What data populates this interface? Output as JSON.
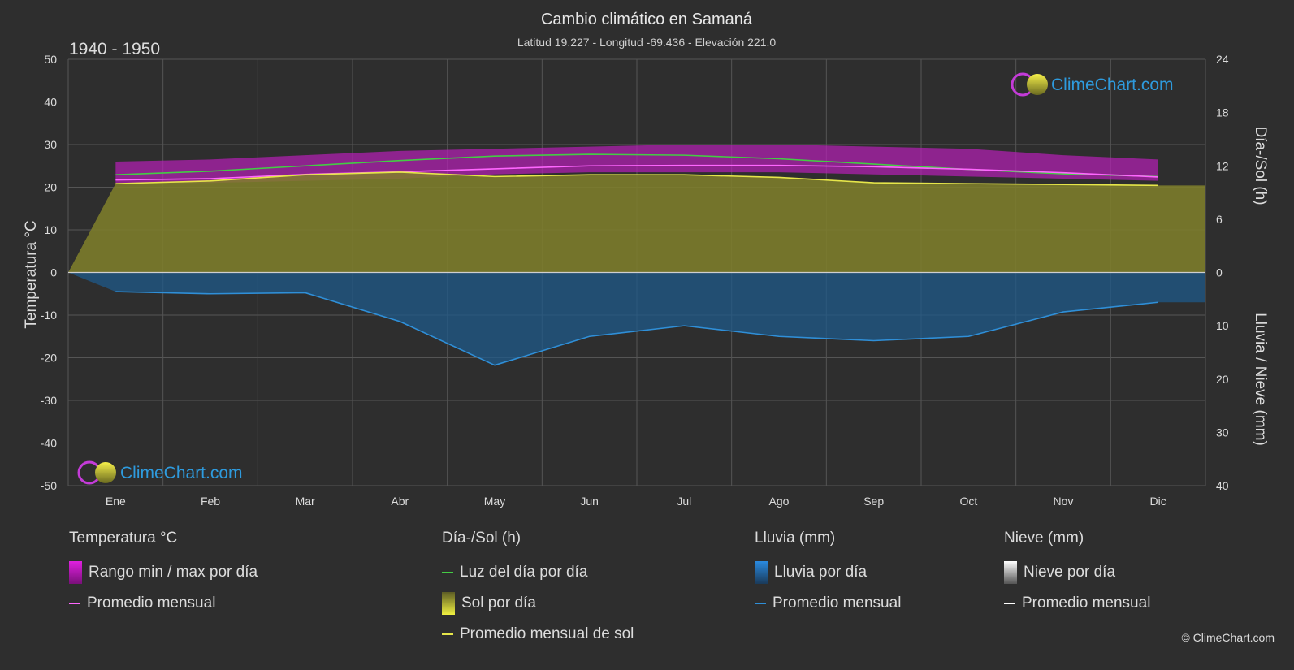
{
  "title": "Cambio climático en Samaná",
  "subtitle": "Latitud 19.227 - Longitud -69.436 - Elevación 221.0",
  "period": "1940 - 1950",
  "brand": "ClimeChart.com",
  "copyright": "© ClimeChart.com",
  "colors": {
    "background": "#2e2e2e",
    "temp_range": "#cc22cc",
    "temp_avg": "#ff66ff",
    "daylight": "#44cc44",
    "sunshine_fill": "#8c8c2a",
    "sunshine_avg": "#e6e64a",
    "rain_fill": "#1f5a8a",
    "rain_avg": "#2f8fd8",
    "snow_avg": "#ffffff",
    "brand_text": "#2e9bde"
  },
  "legend": {
    "temperature": {
      "header": "Temperatura °C",
      "items": [
        {
          "label": "Rango min / max por día",
          "icon": "magenta-gradient-box"
        },
        {
          "label": "Promedio mensual",
          "icon": "magenta-line"
        }
      ]
    },
    "sun": {
      "header": "Día-/Sol (h)",
      "items": [
        {
          "label": "Luz del día por día",
          "icon": "green-line"
        },
        {
          "label": "Sol por día",
          "icon": "yellow-gradient-box"
        },
        {
          "label": "Promedio mensual de sol",
          "icon": "yellow-line"
        }
      ]
    },
    "rain": {
      "header": "Lluvia (mm)",
      "items": [
        {
          "label": "Lluvia por día",
          "icon": "blue-gradient-box"
        },
        {
          "label": "Promedio mensual",
          "icon": "blue-line"
        }
      ]
    },
    "snow": {
      "header": "Nieve (mm)",
      "items": [
        {
          "label": "Nieve por día",
          "icon": "white-gradient-box"
        },
        {
          "label": "Promedio mensual",
          "icon": "white-line"
        }
      ]
    }
  },
  "chart_data": {
    "type": "line",
    "categories": [
      "Ene",
      "Feb",
      "Mar",
      "Abr",
      "May",
      "Jun",
      "Jul",
      "Ago",
      "Sep",
      "Oct",
      "Nov",
      "Dic"
    ],
    "y_left": {
      "label": "Temperatura °C",
      "range": [
        -50,
        50
      ],
      "ticks": [
        50,
        40,
        30,
        20,
        10,
        0,
        -10,
        -20,
        -30,
        -40,
        -50
      ]
    },
    "y_right_top": {
      "label": "Día-/Sol (h)",
      "range": [
        0,
        24
      ],
      "ticks": [
        24,
        18,
        12,
        6,
        0
      ]
    },
    "y_right_bottom": {
      "label": "Lluvia / Nieve (mm)",
      "range": [
        0,
        40
      ],
      "ticks": [
        0,
        10,
        20,
        30,
        40
      ]
    },
    "grid": true,
    "series": [
      {
        "name": "Rango min / max por día",
        "kind": "band",
        "min": [
          21.0,
          21.0,
          21.5,
          22.0,
          23.0,
          23.5,
          23.5,
          23.5,
          23.0,
          22.5,
          22.0,
          21.5
        ],
        "max": [
          26.0,
          26.5,
          27.5,
          28.5,
          29.0,
          29.5,
          30.0,
          30.0,
          29.5,
          29.0,
          27.5,
          26.5
        ]
      },
      {
        "name": "Promedio mensual",
        "kind": "temp_avg",
        "values": [
          21.7,
          22.0,
          23.0,
          23.6,
          24.3,
          25.0,
          25.1,
          25.1,
          24.8,
          24.2,
          23.4,
          22.4
        ]
      },
      {
        "name": "Luz del día por día",
        "kind": "daylight",
        "values": [
          11.0,
          11.4,
          12.0,
          12.6,
          13.1,
          13.3,
          13.2,
          12.8,
          12.2,
          11.6,
          11.1,
          10.8
        ]
      },
      {
        "name": "Sol por día",
        "kind": "sunshine",
        "values": [
          10.0,
          10.3,
          11.0,
          11.3,
          10.8,
          11.0,
          11.0,
          10.7,
          10.1,
          10.0,
          9.9,
          9.8
        ]
      },
      {
        "name": "Promedio mensual de sol",
        "kind": "sunshine_avg",
        "values": [
          10.0,
          10.3,
          11.0,
          11.3,
          10.8,
          11.0,
          11.0,
          10.7,
          10.1,
          10.0,
          9.9,
          9.8
        ]
      },
      {
        "name": "Lluvia por día",
        "kind": "rain_avg_mm",
        "values": [
          3.6,
          4.0,
          3.8,
          9.2,
          17.4,
          12.0,
          10.0,
          12.0,
          12.8,
          12.0,
          7.4,
          5.6
        ]
      },
      {
        "name": "Promedio mensual",
        "kind": "snow_avg_mm",
        "values": [
          0,
          0,
          0,
          0,
          0,
          0,
          0,
          0,
          0,
          0,
          0,
          0
        ]
      }
    ]
  }
}
